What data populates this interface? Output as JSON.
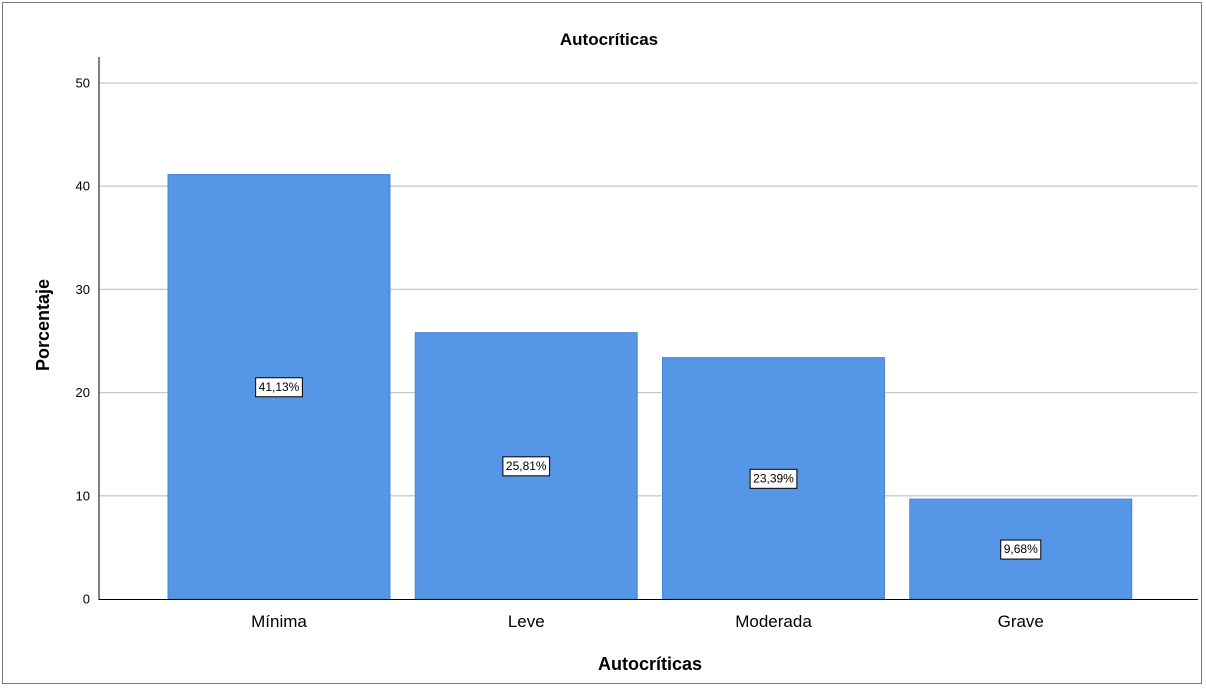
{
  "chart_data": {
    "type": "bar",
    "title": "Autocríticas",
    "xlabel": "Autocríticas",
    "ylabel": "Porcentaje",
    "categories": [
      "Mínima",
      "Leve",
      "Moderada",
      "Grave"
    ],
    "values": [
      41.13,
      25.81,
      23.39,
      9.68
    ],
    "data_labels": [
      "41,13%",
      "25,81%",
      "23,39%",
      "9,68%"
    ],
    "yticks": [
      "0",
      "10",
      "20",
      "30",
      "40",
      "50"
    ],
    "ylim": [
      0,
      52
    ],
    "grid": true,
    "colors": {
      "bar": "#5596e6",
      "bar_edge": "#4a86d0",
      "grid": "#c8c8c8",
      "axis": "#000000"
    }
  }
}
